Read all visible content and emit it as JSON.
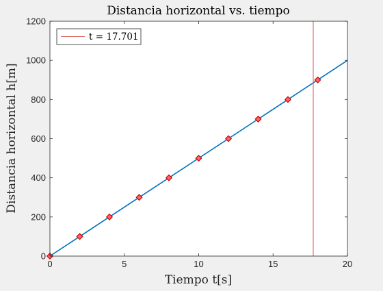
{
  "chart_data": {
    "type": "line",
    "title": "Distancia horizontal vs. tiempo",
    "xlabel": "Tiempo t[s]",
    "ylabel": "Distancia horizontal h[m]",
    "xlim": [
      0,
      20
    ],
    "ylim": [
      0,
      1200
    ],
    "xticks": [
      0,
      5,
      10,
      15,
      20
    ],
    "yticks": [
      0,
      200,
      400,
      600,
      800,
      1000,
      1200
    ],
    "grid": false,
    "legend_position": "top-left",
    "series": [
      {
        "color": "#0072bd",
        "x": [
          0,
          20
        ],
        "y": [
          0,
          1000
        ]
      },
      {
        "marker": "diamond",
        "marker_face": "#ff6666",
        "marker_edge": "#cc0000",
        "x": [
          0,
          2,
          4,
          6,
          8,
          10,
          12,
          14,
          16,
          18
        ],
        "y": [
          0,
          100,
          200,
          300,
          400,
          500,
          600,
          700,
          800,
          900
        ]
      }
    ],
    "vertical_line": {
      "name": "t = 17.701",
      "x": 17.701,
      "color": "#d9534f"
    }
  }
}
